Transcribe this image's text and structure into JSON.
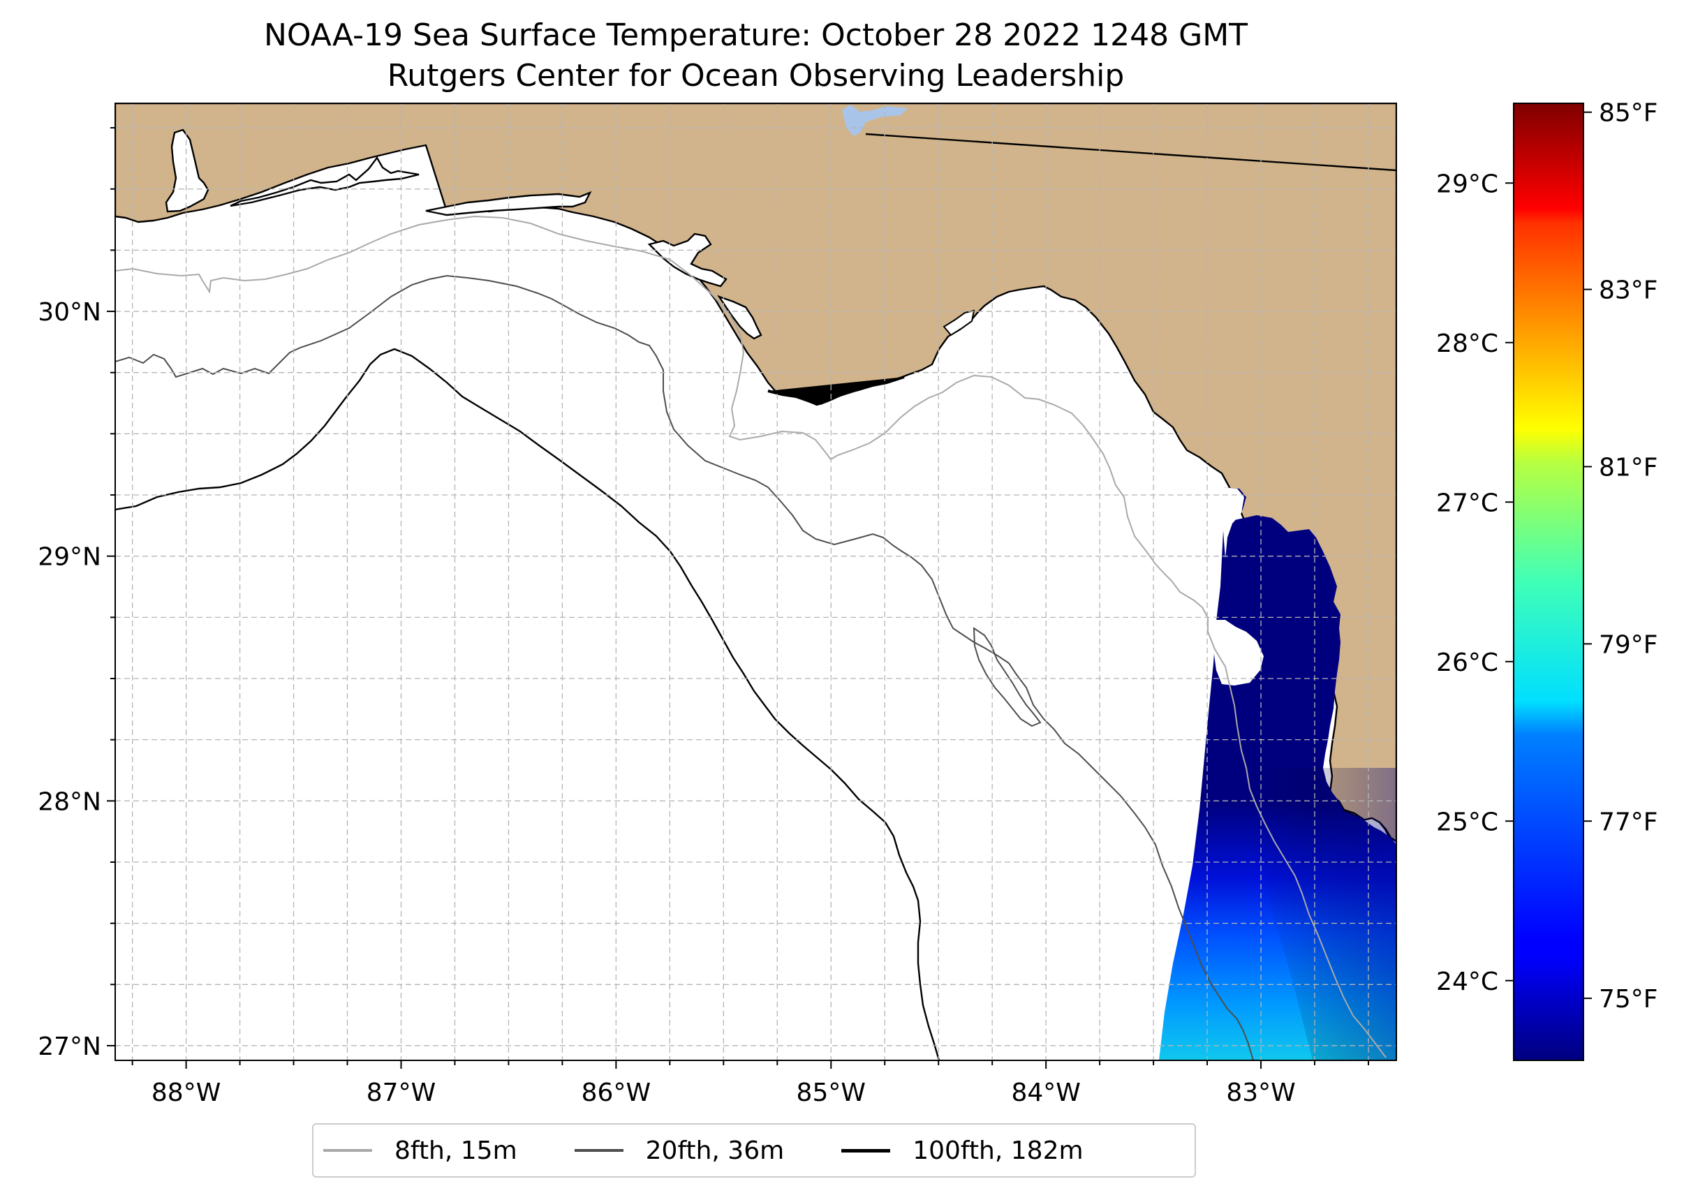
{
  "figure": {
    "title_line1": "NOAA-19 Sea Surface Temperature: October 28 2022 1248 GMT",
    "title_line2": "Rutgers Center for Ocean Observing Leadership"
  },
  "map": {
    "projection": "PlateCarree",
    "extent": {
      "lon_min": -88.33,
      "lon_max": -82.37,
      "lat_min": 26.94,
      "lat_max": 30.85
    },
    "gridlines": {
      "major_step_deg": 1,
      "minor_step_deg": 0.25,
      "style": "dashed",
      "color": "#b5b5b5"
    },
    "colors": {
      "land": "#d2b48c",
      "ocean": "#ffffff",
      "lake": "#a8c4e8",
      "coastline": "#000000",
      "border": "#000000"
    },
    "x_ticks": [
      {
        "value": -88,
        "label": "88°W"
      },
      {
        "value": -87,
        "label": "87°W"
      },
      {
        "value": -86,
        "label": "86°W"
      },
      {
        "value": -85,
        "label": "85°W"
      },
      {
        "value": -84,
        "label": "84°W"
      },
      {
        "value": -83,
        "label": "83°W"
      }
    ],
    "y_ticks": [
      {
        "value": 27,
        "label": "27°N"
      },
      {
        "value": 28,
        "label": "28°N"
      },
      {
        "value": 29,
        "label": "29°N"
      },
      {
        "value": 30,
        "label": "30°N"
      }
    ]
  },
  "isobaths": [
    {
      "label": "8fth, 15m",
      "color": "#a9a9a9",
      "width": 2
    },
    {
      "label": "20fth, 36m",
      "color": "#4d4d4d",
      "width": 2
    },
    {
      "label": "100fth, 182m",
      "color": "#000000",
      "width": 2.4
    }
  ],
  "colorbar": {
    "colormap": "jet",
    "vmin_c": 23.5,
    "vmax_c": 29.5,
    "celsius_ticks": [
      {
        "value": 24,
        "label": "24°C"
      },
      {
        "value": 25,
        "label": "25°C"
      },
      {
        "value": 26,
        "label": "26°C"
      },
      {
        "value": 27,
        "label": "27°C"
      },
      {
        "value": 28,
        "label": "28°C"
      },
      {
        "value": 29,
        "label": "29°C"
      }
    ],
    "fahrenheit_ticks": [
      {
        "value": 75,
        "label": "75°F"
      },
      {
        "value": 77,
        "label": "77°F"
      },
      {
        "value": 79,
        "label": "79°F"
      },
      {
        "value": 81,
        "label": "81°F"
      },
      {
        "value": 83,
        "label": "83°F"
      },
      {
        "value": 85,
        "label": "85°F"
      }
    ]
  },
  "sst_data": {
    "units": "°C",
    "coverage": "eastern Gulf swath, west Florida shelf",
    "range_c": [
      23.5,
      25.9
    ]
  }
}
